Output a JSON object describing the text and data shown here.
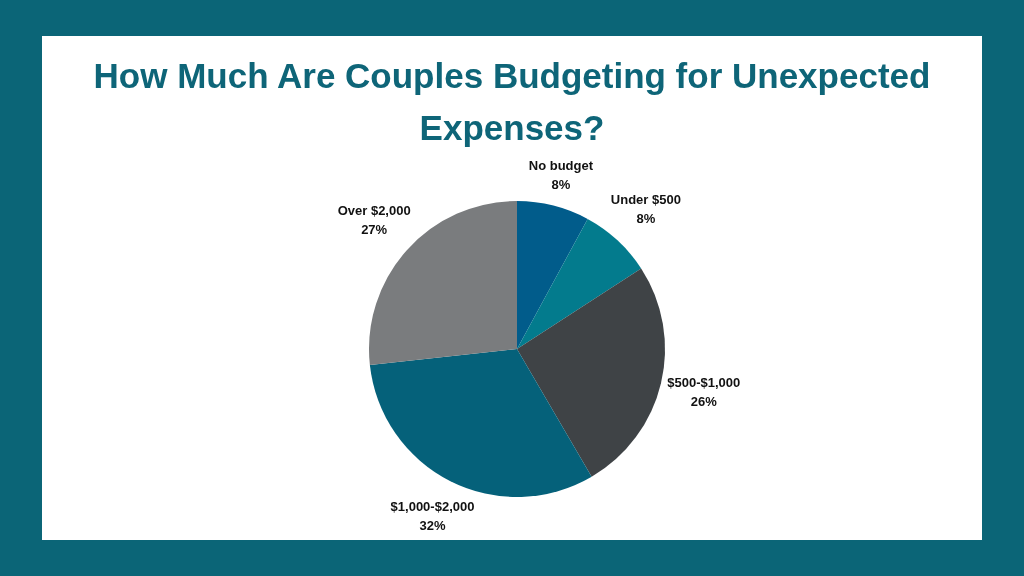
{
  "chart_data": {
    "type": "pie",
    "title": "How Much Are Couples Budgeting for Unexpected Expenses?",
    "categories": [
      "No budget",
      "Under $500",
      "$500-$1,000",
      "$1,000-$2,000",
      "Over $2,000"
    ],
    "values": [
      8,
      8,
      26,
      32,
      27
    ],
    "colors": [
      "#015c8b",
      "#037b8d",
      "#3f4346",
      "#05617a",
      "#7a7c7e"
    ],
    "value_labels": [
      "8%",
      "8%",
      "26%",
      "32%",
      "27%"
    ]
  }
}
